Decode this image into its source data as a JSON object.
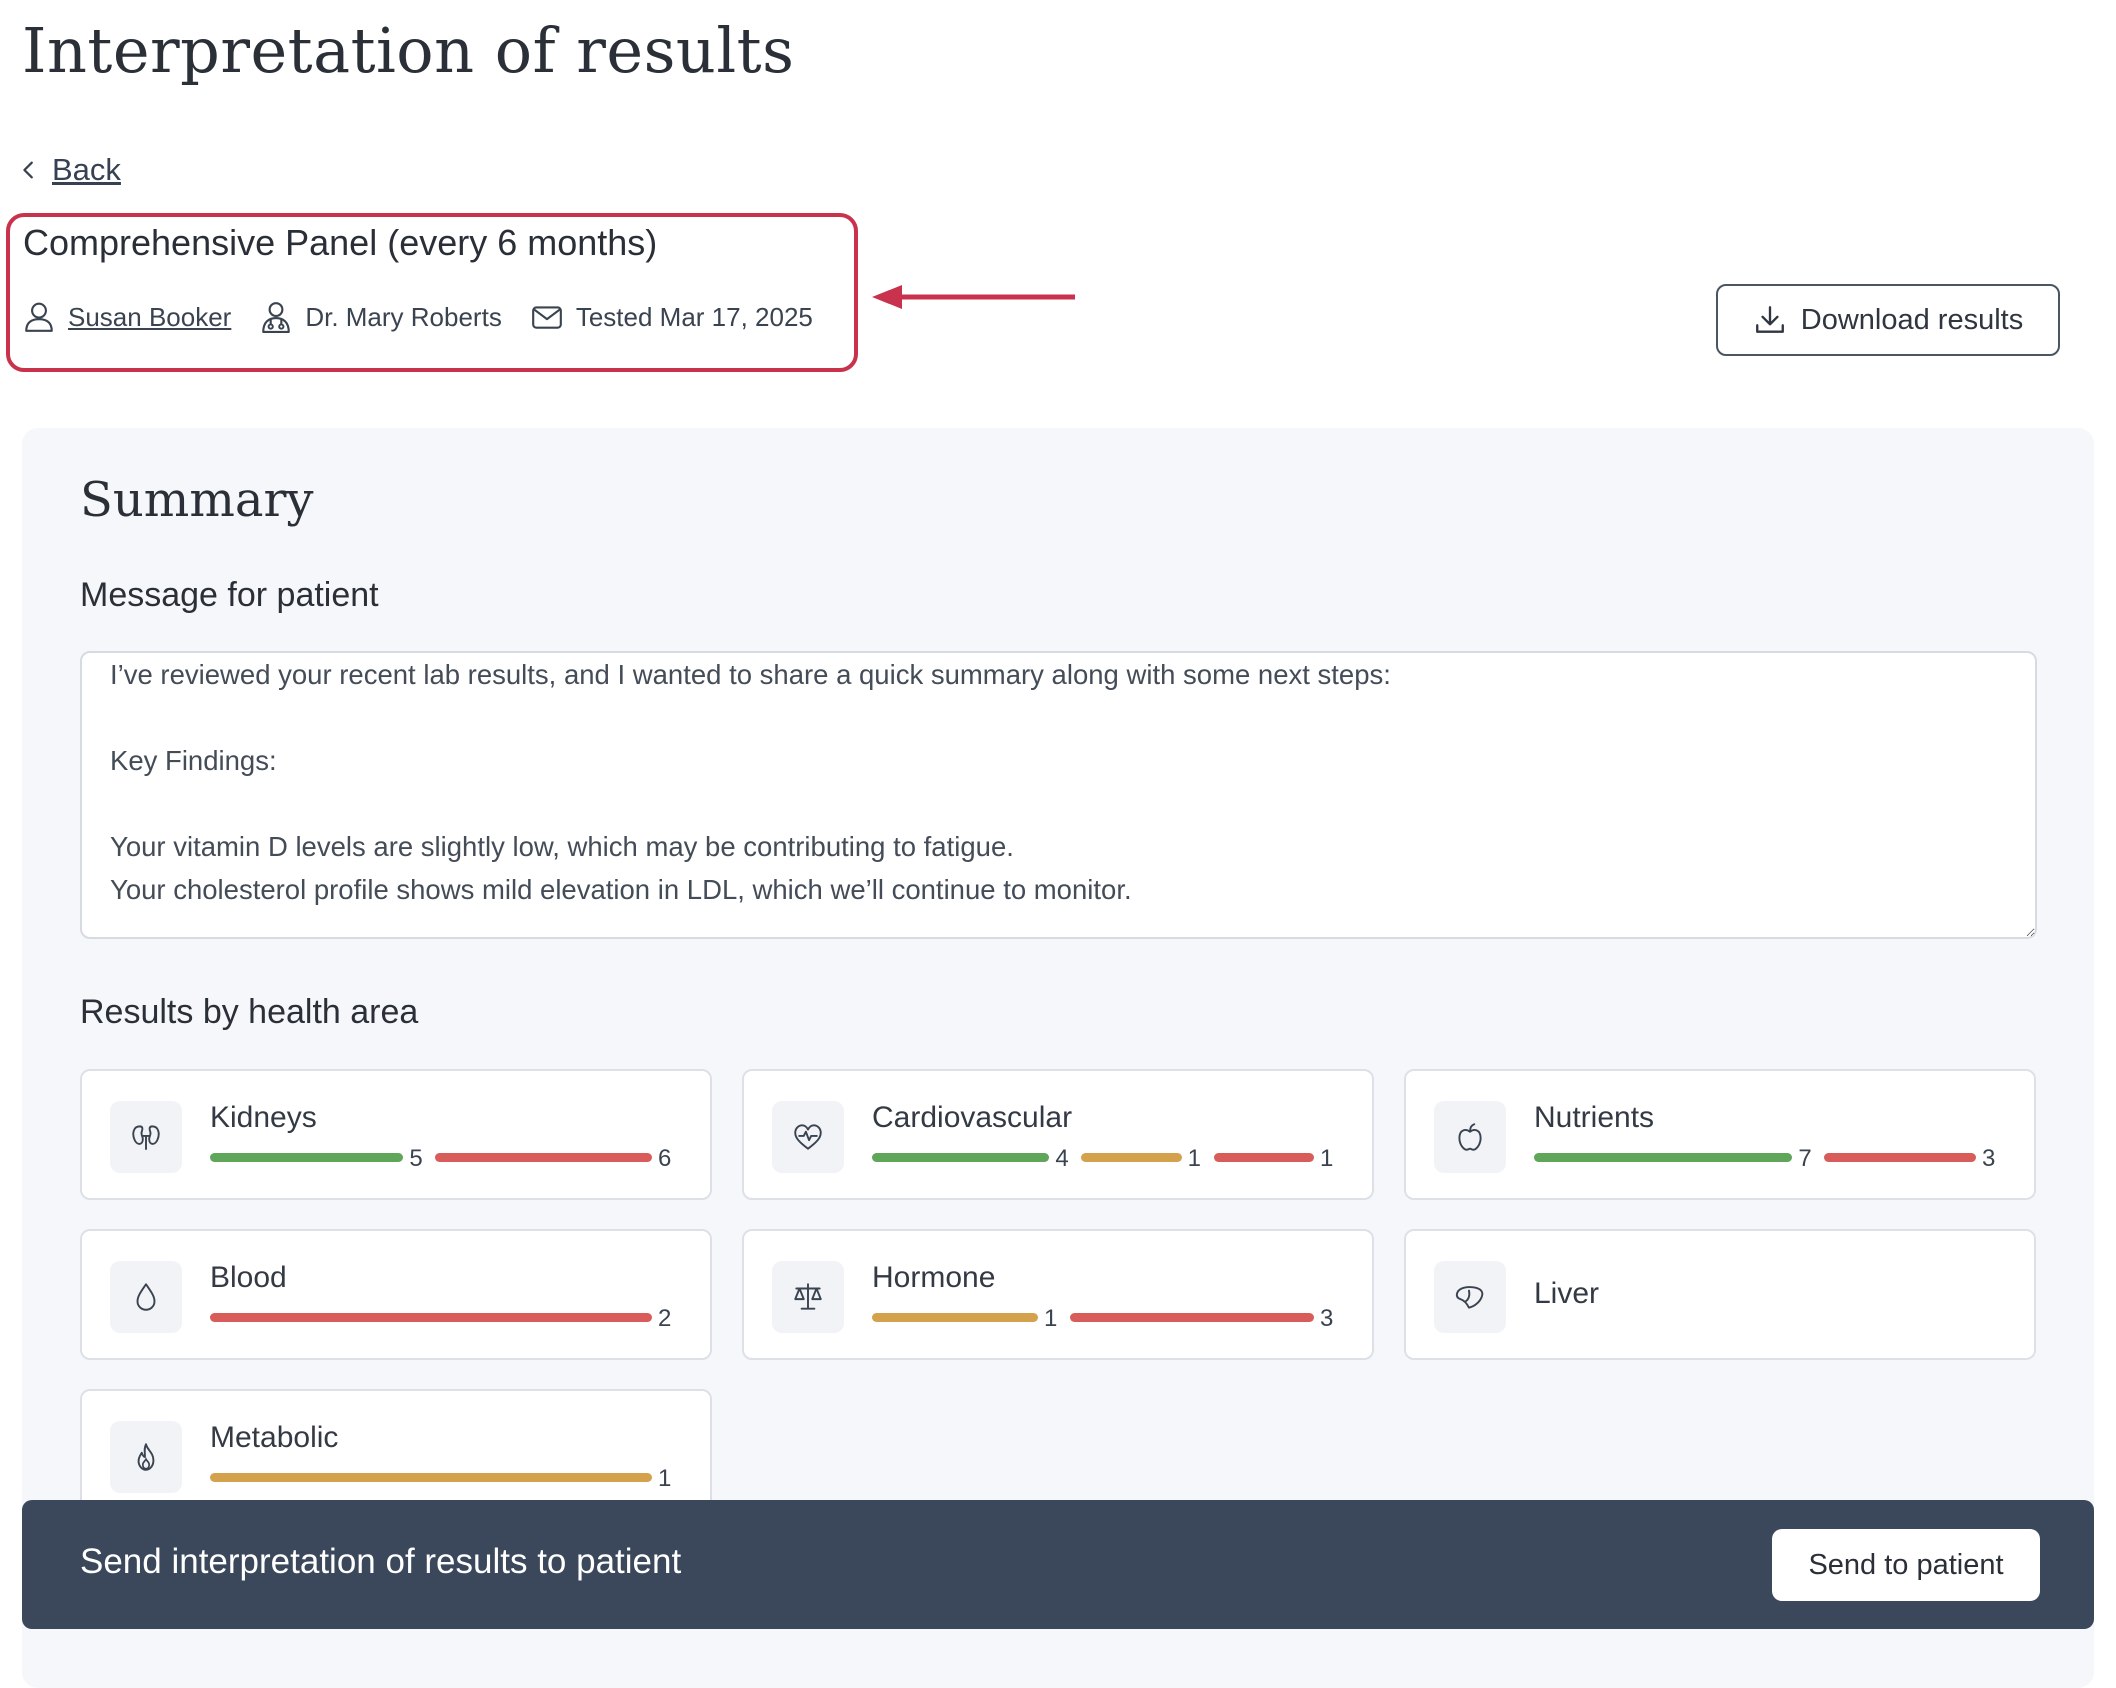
{
  "page": {
    "title": "Interpretation of results",
    "back_label": "Back"
  },
  "panel": {
    "title": "Comprehensive Panel (every 6 months)",
    "patient": "Susan Booker",
    "doctor": "Dr. Mary Roberts",
    "tested": "Tested Mar 17, 2025"
  },
  "actions": {
    "download_label": "Download results"
  },
  "summary": {
    "title": "Summary",
    "message_label": "Message for patient",
    "message_lines": [
      "I’ve reviewed your recent lab results, and I wanted to share a quick summary along with some next steps:",
      "",
      "Key Findings:",
      "",
      "Your vitamin D levels are slightly low, which may be contributing to fatigue.",
      "Your cholesterol profile shows mild elevation in LDL, which we’ll continue to monitor."
    ],
    "areas_label": "Results by health area"
  },
  "colors": {
    "normal": "#5fa55a",
    "borderline": "#d4a24c",
    "out_of_range": "#d85c5a"
  },
  "areas": [
    {
      "name": "Kidneys",
      "icon": "kidneys-icon",
      "counts": [
        {
          "status": "normal",
          "count": 5
        },
        {
          "status": "out_of_range",
          "count": 6
        }
      ]
    },
    {
      "name": "Cardiovascular",
      "icon": "heart-pulse-icon",
      "counts": [
        {
          "status": "normal",
          "count": 4
        },
        {
          "status": "borderline",
          "count": 1
        },
        {
          "status": "out_of_range",
          "count": 1
        }
      ]
    },
    {
      "name": "Nutrients",
      "icon": "apple-icon",
      "counts": [
        {
          "status": "normal",
          "count": 7
        },
        {
          "status": "out_of_range",
          "count": 3
        }
      ]
    },
    {
      "name": "Blood",
      "icon": "droplet-icon",
      "counts": [
        {
          "status": "out_of_range",
          "count": 2
        }
      ]
    },
    {
      "name": "Hormone",
      "icon": "scale-icon",
      "counts": [
        {
          "status": "borderline",
          "count": 1
        },
        {
          "status": "out_of_range",
          "count": 3
        }
      ]
    },
    {
      "name": "Liver",
      "icon": "liver-icon",
      "counts": []
    },
    {
      "name": "Metabolic",
      "icon": "flame-icon",
      "counts": [
        {
          "status": "borderline",
          "count": 1
        }
      ]
    }
  ],
  "footer": {
    "text": "Send interpretation of results to patient",
    "send_label": "Send to patient"
  }
}
